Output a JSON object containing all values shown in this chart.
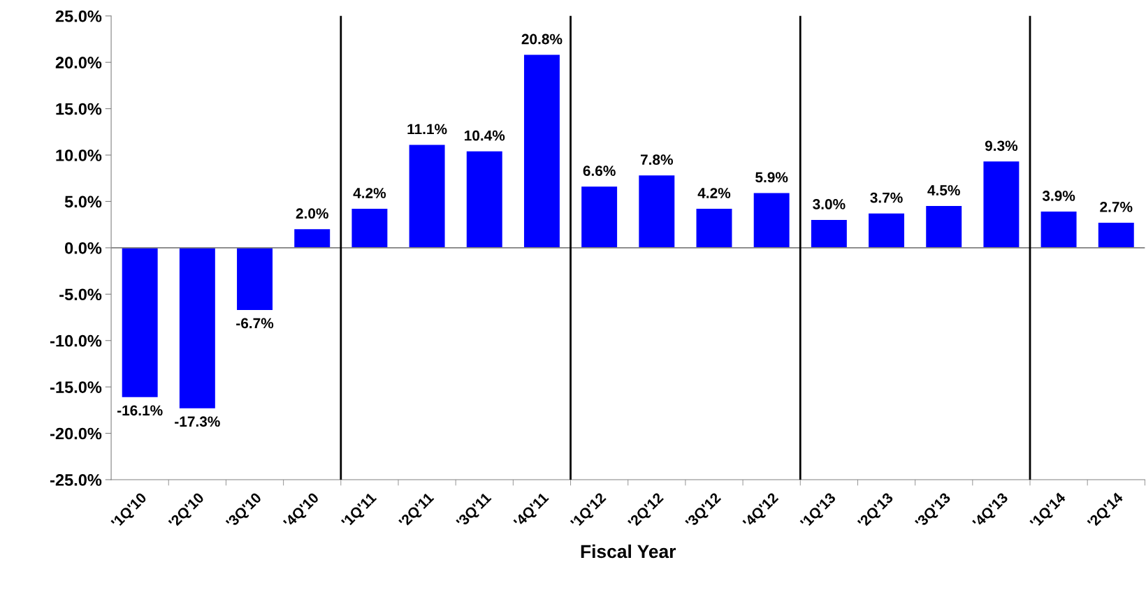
{
  "chart_data": {
    "type": "bar",
    "xlabel": "Fiscal Year",
    "categories": [
      "'1Q'10",
      "'2Q'10",
      "'3Q'10",
      "'4Q'10",
      "'1Q'11",
      "'2Q'11",
      "'3Q'11",
      "'4Q'11",
      "'1Q'12",
      "'2Q'12",
      "'3Q'12",
      "'4Q'12",
      "'1Q'13",
      "'2Q'13",
      "'3Q'13",
      "'4Q'13",
      "'1Q'14",
      "'2Q'14"
    ],
    "values": [
      -16.1,
      -17.3,
      -6.7,
      2.0,
      4.2,
      11.1,
      10.4,
      20.8,
      6.6,
      7.8,
      4.2,
      5.9,
      3.0,
      3.7,
      4.5,
      9.3,
      3.9,
      2.7
    ],
    "value_labels": [
      "-16.1%",
      "-17.3%",
      "-6.7%",
      "2.0%",
      "4.2%",
      "11.1%",
      "10.4%",
      "20.8%",
      "6.6%",
      "7.8%",
      "4.2%",
      "5.9%",
      "3.0%",
      "3.7%",
      "4.5%",
      "9.3%",
      "3.9%",
      "2.7%"
    ],
    "color": "#0000ff",
    "ylim": [
      -25,
      25
    ],
    "yticks": [
      {
        "value": -25,
        "label": "-25.0%"
      },
      {
        "value": -20,
        "label": "-20.0%"
      },
      {
        "value": -15,
        "label": "-15.0%"
      },
      {
        "value": -10,
        "label": "-10.0%"
      },
      {
        "value": -5,
        "label": "-5.0%"
      },
      {
        "value": 0,
        "label": "0.0%"
      },
      {
        "value": 5,
        "label": "5.0%"
      },
      {
        "value": 10,
        "label": "10.0%"
      },
      {
        "value": 15,
        "label": "15.0%"
      },
      {
        "value": 20,
        "label": "20.0%"
      },
      {
        "value": 25,
        "label": "25.0%"
      }
    ],
    "ref_lines": [
      {
        "axis": "y",
        "value": 0,
        "color": "#808080"
      },
      {
        "axis": "x",
        "value": "'1Q'11",
        "color": "#000000"
      },
      {
        "axis": "x",
        "value": "'1Q'12",
        "color": "#000000"
      },
      {
        "axis": "x",
        "value": "'1Q'13",
        "color": "#000000"
      },
      {
        "axis": "x",
        "value": "'1Q'14",
        "color": "#000000"
      }
    ],
    "grid": false,
    "legend": false
  }
}
